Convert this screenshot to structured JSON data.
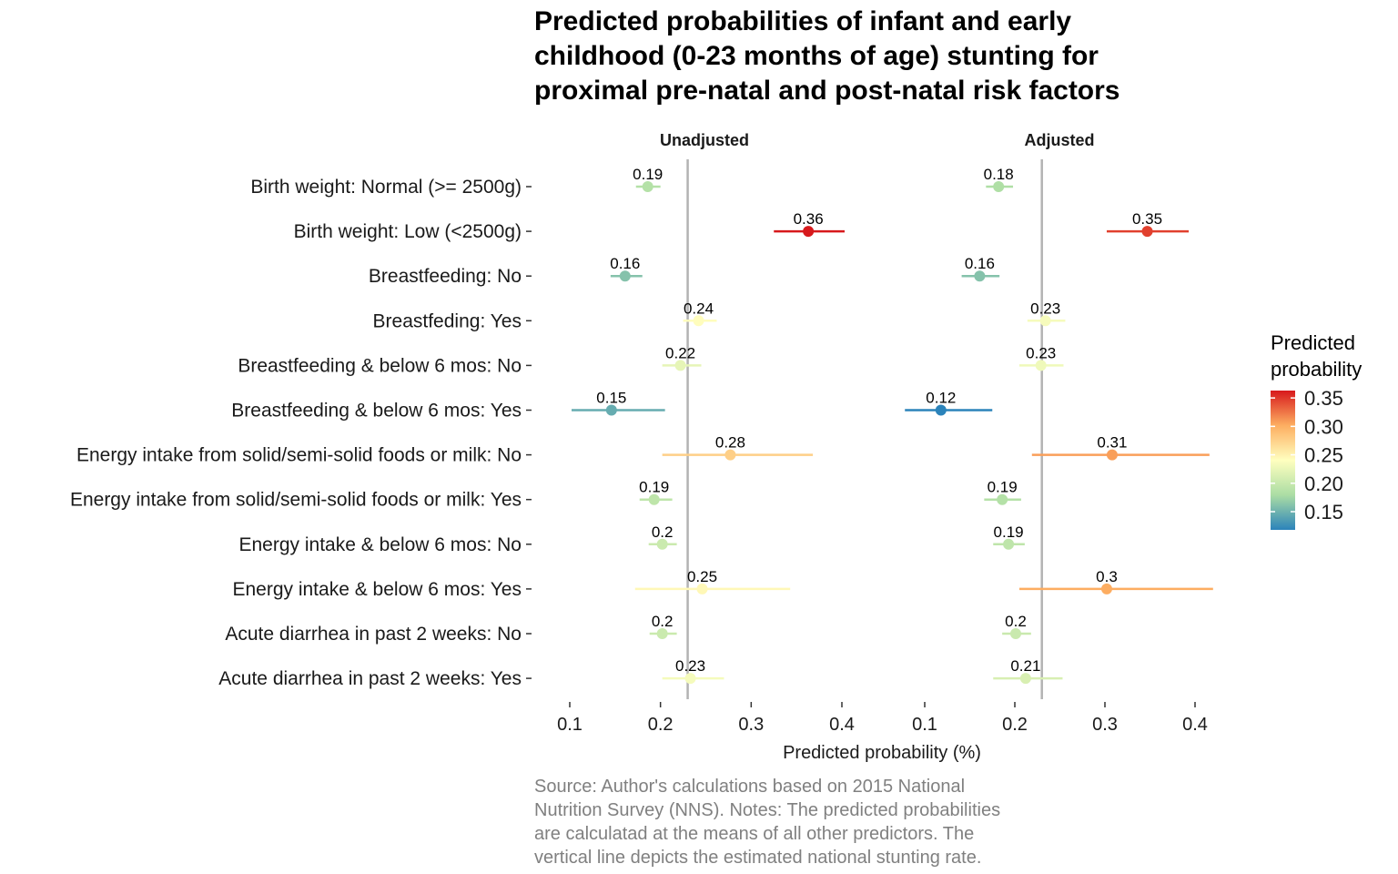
{
  "chart_data": {
    "type": "scatter",
    "title_lines": [
      "Predicted probabilities of infant and early",
      "childhood (0-23 months of age) stunting for",
      "proximal pre-natal and post-natal risk factors"
    ],
    "xlabel": "Predicted probability (%)",
    "ylabel": "",
    "caption_lines": [
      "Source: Author's calculations based on 2015 National",
      "Nutrition Survey (NNS). Notes: The predicted probabilities",
      "are calculatad at the means of all other predictors. The",
      "vertical line depicts the estimated national stunting rate."
    ],
    "categories": [
      "Birth weight: Normal (>= 2500g)",
      "Birth weight: Low (<2500g)",
      "Breastfeeding: No",
      "Breastfeding: Yes",
      "Breastfeeding & below 6 mos: No",
      "Breastfeeding & below 6 mos: Yes",
      "Energy intake from solid/semi-solid foods or milk: No",
      "Energy intake from solid/semi-solid foods or milk: Yes",
      "Energy intake & below 6 mos: No",
      "Energy intake & below 6 mos: Yes",
      "Acute diarrhea in past 2 weeks: No",
      "Acute diarrhea in past 2 weeks: Yes"
    ],
    "panels": [
      {
        "name": "Unadjusted",
        "xlim": [
          0.1,
          0.4
        ],
        "ticks": [
          0.1,
          0.2,
          0.3,
          0.4
        ],
        "reference_line": 0.23,
        "estimates": [
          0.186,
          0.363,
          0.161,
          0.242,
          0.222,
          0.146,
          0.277,
          0.193,
          0.202,
          0.246,
          0.202,
          0.233
        ],
        "lower": [
          0.173,
          0.325,
          0.145,
          0.225,
          0.202,
          0.102,
          0.202,
          0.177,
          0.187,
          0.172,
          0.188,
          0.202
        ],
        "upper": [
          0.2,
          0.403,
          0.18,
          0.262,
          0.245,
          0.205,
          0.368,
          0.213,
          0.218,
          0.343,
          0.218,
          0.27
        ],
        "labels": [
          "0.19",
          "0.36",
          "0.16",
          "0.24",
          "0.22",
          "0.15",
          "0.28",
          "0.19",
          "0.2",
          "0.25",
          "0.2",
          "0.23"
        ]
      },
      {
        "name": "Adjusted",
        "xlim": [
          0.1,
          0.4
        ],
        "ticks": [
          0.1,
          0.2,
          0.3,
          0.4
        ],
        "reference_line": 0.23,
        "estimates": [
          0.182,
          0.347,
          0.161,
          0.234,
          0.229,
          0.118,
          0.308,
          0.186,
          0.193,
          0.302,
          0.201,
          0.212
        ],
        "lower": [
          0.168,
          0.302,
          0.141,
          0.214,
          0.205,
          0.078,
          0.219,
          0.166,
          0.176,
          0.205,
          0.186,
          0.176
        ],
        "upper": [
          0.198,
          0.393,
          0.183,
          0.256,
          0.254,
          0.175,
          0.416,
          0.207,
          0.211,
          0.42,
          0.218,
          0.253
        ],
        "labels": [
          "0.18",
          "0.35",
          "0.16",
          "0.23",
          "0.23",
          "0.12",
          "0.31",
          "0.19",
          "0.19",
          "0.3",
          "0.2",
          "0.21"
        ]
      }
    ],
    "legend": {
      "title_lines": [
        "Predicted",
        "probability"
      ],
      "ticks": [
        0.15,
        0.2,
        0.25,
        0.3,
        0.35
      ],
      "tick_labels": [
        "0.15",
        "0.20",
        "0.25",
        "0.30",
        "0.35"
      ],
      "range": [
        0.118,
        0.363
      ],
      "placement": "right",
      "palette": [
        "#2b83ba",
        "#abdda4",
        "#ffffbf",
        "#fdae61",
        "#d7191c"
      ]
    },
    "reference_line_color": "#b3b3b3",
    "grid": false
  }
}
